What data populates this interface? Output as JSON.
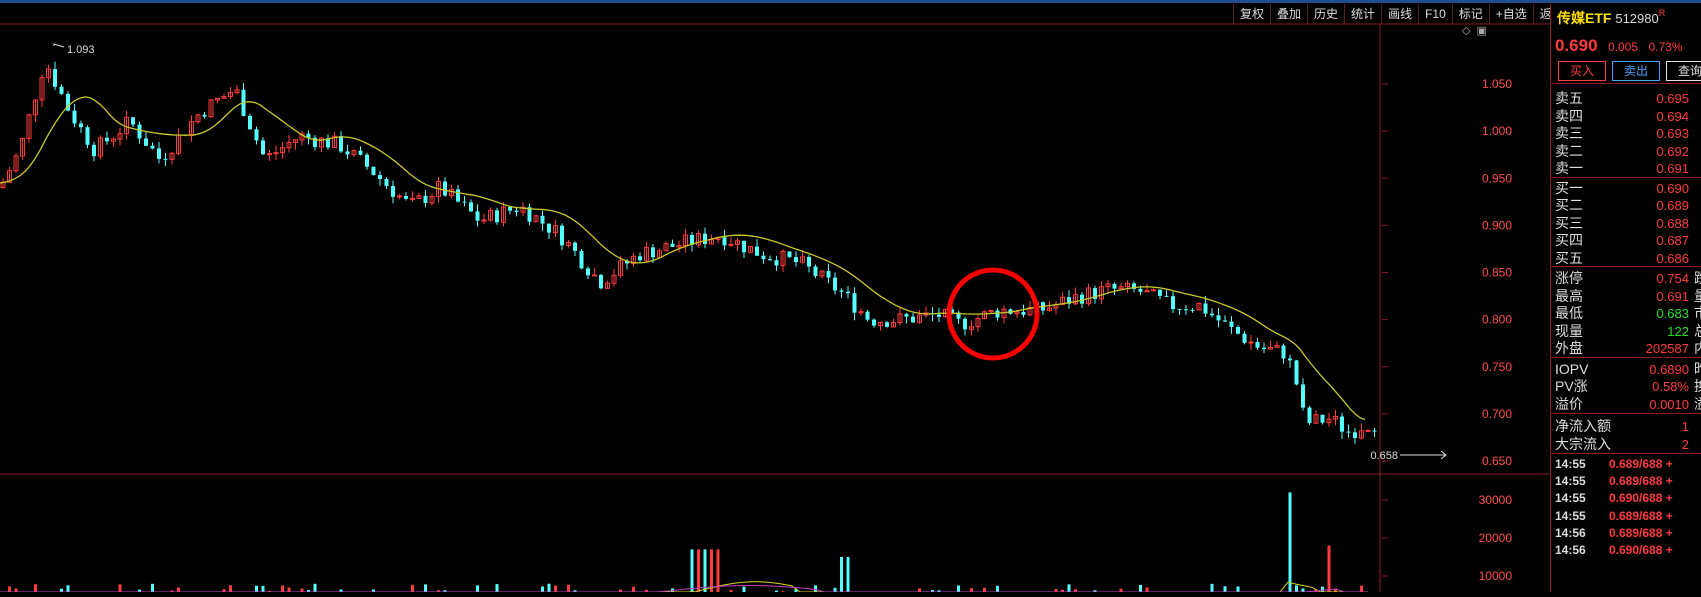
{
  "toolbar": [
    "复权",
    "叠加",
    "历史",
    "统计",
    "画线",
    "F10",
    "标记",
    "+自选",
    "返回"
  ],
  "chart_icons": [
    "◇",
    "▣"
  ],
  "price_axis": {
    "ticks": [
      "1.050",
      "1.000",
      "0.950",
      "0.900",
      "0.850",
      "0.800",
      "0.750",
      "0.700",
      "0.650"
    ],
    "max_label": "1.093",
    "min_label": "0.658"
  },
  "volume_axis": {
    "ticks": [
      "30000",
      "20000",
      "10000"
    ]
  },
  "colors": {
    "up": "#ff3b3b",
    "down": "#54ffff",
    "ma": "#c9c92a",
    "grid": "#8a1b1b",
    "highlight": "#ff0000"
  },
  "quote": {
    "name": "传媒ETF",
    "code": "512980",
    "flag": "R",
    "price": "0.690",
    "change": "0.005",
    "change_pct": "0.73%",
    "buy_label": "买入",
    "sell_label": "卖出",
    "query_label": "查询"
  },
  "asks": [
    {
      "label": "卖五",
      "price": "0.695"
    },
    {
      "label": "卖四",
      "price": "0.694"
    },
    {
      "label": "卖三",
      "price": "0.693"
    },
    {
      "label": "卖二",
      "price": "0.692"
    },
    {
      "label": "卖一",
      "price": "0.691"
    }
  ],
  "bids": [
    {
      "label": "买一",
      "price": "0.690"
    },
    {
      "label": "买二",
      "price": "0.689"
    },
    {
      "label": "买三",
      "price": "0.688"
    },
    {
      "label": "买四",
      "price": "0.687"
    },
    {
      "label": "买五",
      "price": "0.686"
    }
  ],
  "stats": [
    {
      "label": "涨停",
      "value": "0.754",
      "label2": "跌停",
      "color": "red"
    },
    {
      "label": "最高",
      "value": "0.691",
      "label2": "量比",
      "color": "red"
    },
    {
      "label": "最低",
      "value": "0.683",
      "label2": "市值",
      "color": "green"
    },
    {
      "label": "现量",
      "value": "122",
      "label2": "总量",
      "color": "green"
    },
    {
      "label": "外盘",
      "value": "202587",
      "label2": "内盘",
      "color": "red"
    }
  ],
  "iopv": [
    {
      "label": "IOPV",
      "value": "0.6890",
      "label2": "昨PV",
      "color": "red"
    },
    {
      "label": "PV涨",
      "value": "0.58%",
      "label2": "换手",
      "color": "red"
    },
    {
      "label": "溢价",
      "value": "0.0010",
      "label2": "溢率",
      "color": "red"
    }
  ],
  "flows": [
    {
      "label": "净流入额",
      "value": "1"
    },
    {
      "label": "大宗流入",
      "value": "2"
    }
  ],
  "trades": [
    {
      "time": "14:55",
      "detail": "0.689/688 +"
    },
    {
      "time": "14:55",
      "detail": "0.689/688 +"
    },
    {
      "time": "14:55",
      "detail": "0.690/688 +"
    },
    {
      "time": "14:55",
      "detail": "0.689/688 +"
    },
    {
      "time": "14:56",
      "detail": "0.689/688 +"
    },
    {
      "time": "14:56",
      "detail": "0.690/688 +"
    }
  ]
}
